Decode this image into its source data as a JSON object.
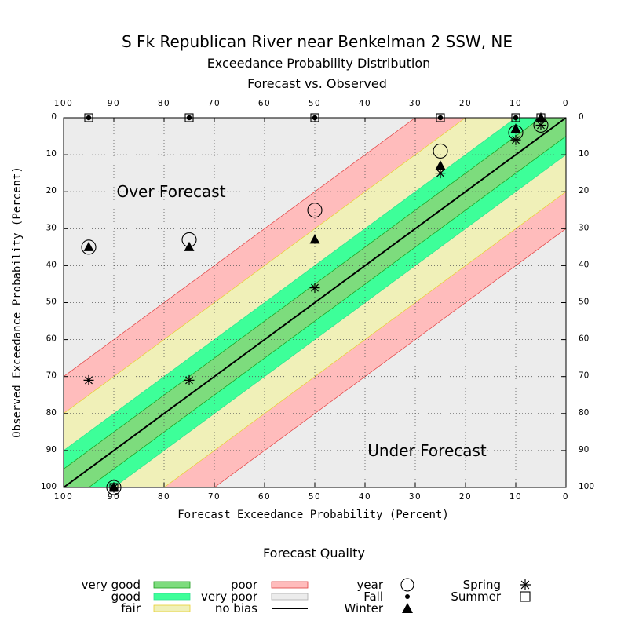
{
  "chart_data": {
    "type": "scatter",
    "title": "S Fk Republican River near Benkelman 2 SSW, NE",
    "subtitle1": "Exceedance Probability Distribution",
    "subtitle2": "Forecast vs. Observed",
    "xlabel": "Forecast Exceedance Probability (Percent)",
    "ylabel": "Observed Exceedance Probability (Percent)",
    "xlim": [
      100,
      0
    ],
    "ylim": [
      0,
      100
    ],
    "ticks": [
      100,
      90,
      80,
      70,
      60,
      50,
      40,
      30,
      20,
      10,
      0
    ],
    "grid": true,
    "annotations": {
      "over": "Over Forecast",
      "under": "Under Forecast"
    },
    "bands": [
      {
        "name": "very good",
        "halfwidth": 5,
        "color": "#7ddc7d",
        "edge": "#1a9a1a"
      },
      {
        "name": "good",
        "halfwidth": 10,
        "color": "#3dff99",
        "edge": "#30e090"
      },
      {
        "name": "fair",
        "halfwidth": 20,
        "color": "#f0f0b8",
        "edge": "#e8d030"
      },
      {
        "name": "poor",
        "halfwidth": 30,
        "color": "#ffbcbc",
        "edge": "#e04040"
      },
      {
        "name": "very poor",
        "color": "#ececec",
        "edge": "#aaaaaa"
      }
    ],
    "no_bias_color": "#000000",
    "series": [
      {
        "name": "year",
        "marker": "circle",
        "points": [
          [
            95,
            35
          ],
          [
            75,
            33
          ],
          [
            50,
            25
          ],
          [
            25,
            9
          ],
          [
            10,
            4
          ],
          [
            5,
            2
          ],
          [
            90,
            100
          ]
        ]
      },
      {
        "name": "Fall",
        "marker": "dot",
        "points": [
          [
            95,
            0
          ],
          [
            75,
            0
          ],
          [
            50,
            0
          ],
          [
            25,
            0
          ],
          [
            10,
            0
          ],
          [
            5,
            0
          ]
        ]
      },
      {
        "name": "Winter",
        "marker": "triangle",
        "points": [
          [
            95,
            35
          ],
          [
            75,
            35
          ],
          [
            50,
            33
          ],
          [
            25,
            13
          ],
          [
            10,
            3
          ],
          [
            5,
            0
          ],
          [
            90,
            100
          ]
        ]
      },
      {
        "name": "Spring",
        "marker": "asterisk",
        "points": [
          [
            95,
            71
          ],
          [
            75,
            71
          ],
          [
            50,
            46
          ],
          [
            25,
            15
          ],
          [
            10,
            6
          ],
          [
            5,
            2
          ],
          [
            90,
            100
          ]
        ]
      },
      {
        "name": "Summer",
        "marker": "square",
        "points": [
          [
            95,
            0
          ],
          [
            75,
            0
          ],
          [
            50,
            0
          ],
          [
            25,
            0
          ],
          [
            10,
            0
          ],
          [
            5,
            0
          ],
          [
            90,
            100
          ]
        ]
      }
    ],
    "legend": {
      "title": "Forecast Quality",
      "placement": "bottom",
      "quality": [
        "very good",
        "good",
        "fair",
        "poor",
        "very poor",
        "no bias"
      ],
      "markers": [
        "year",
        "Fall",
        "Winter",
        "Spring",
        "Summer"
      ]
    }
  }
}
